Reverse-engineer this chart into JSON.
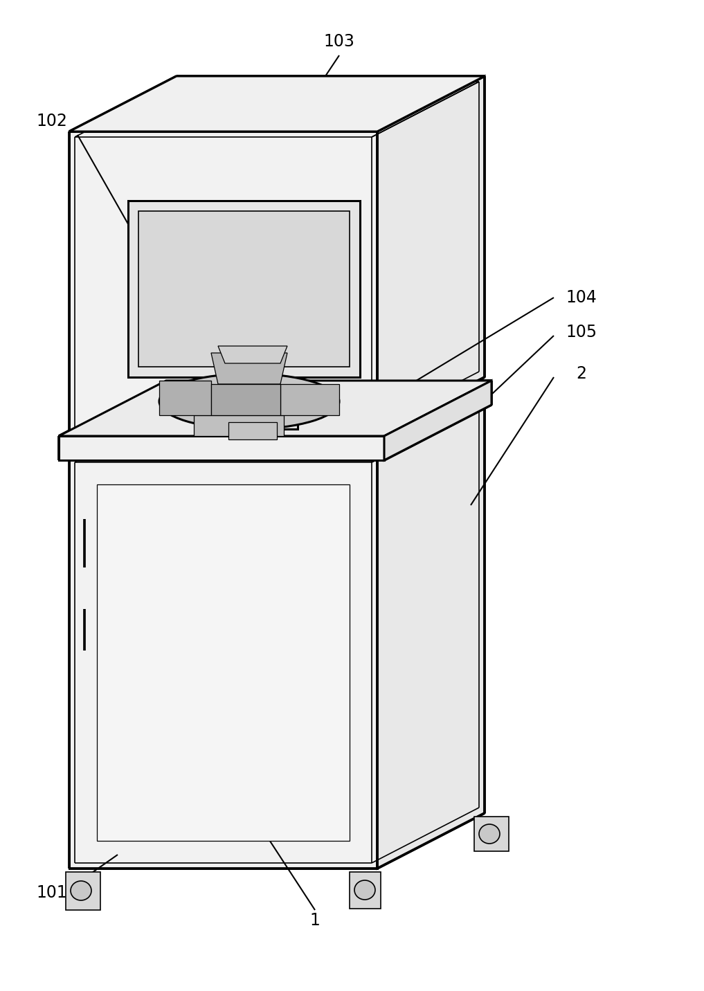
{
  "background_color": "#ffffff",
  "line_color": "#000000",
  "lw_outer": 2.2,
  "lw_inner": 1.2,
  "lw_thin": 0.9,
  "label_fontsize": 17,
  "figure_width": 10.17,
  "figure_height": 14.32,
  "dpi": 100
}
